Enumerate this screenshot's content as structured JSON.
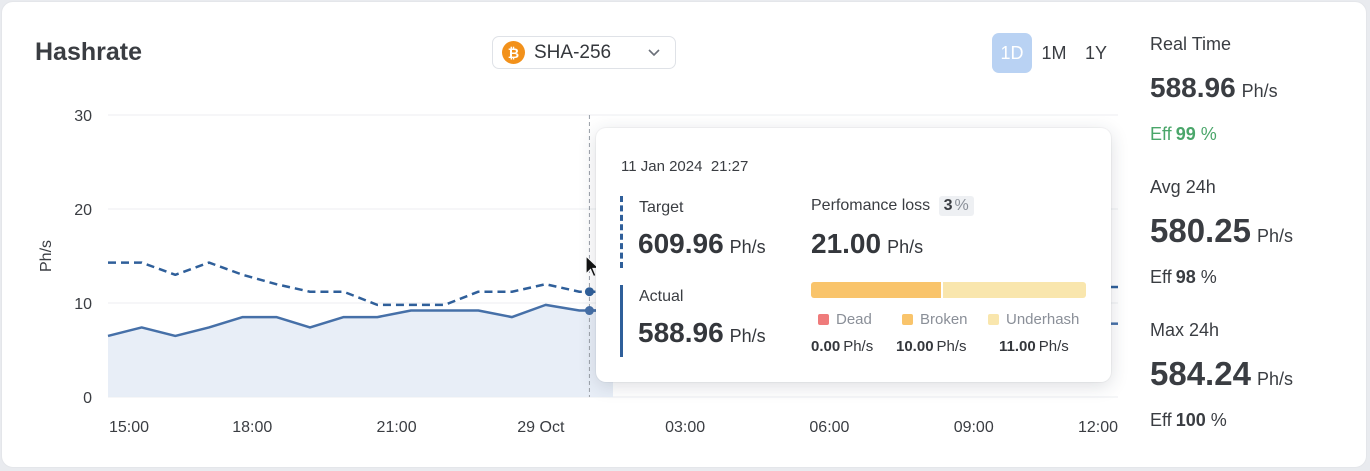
{
  "title": "Hashrate",
  "algorithm": {
    "label": "SHA-256",
    "icon": "bitcoin-icon",
    "icon_color": "#f2911b"
  },
  "ranges": [
    {
      "label": "1D",
      "active": true
    },
    {
      "label": "1M",
      "active": false
    },
    {
      "label": "1Y",
      "active": false
    }
  ],
  "chart_data": {
    "type": "area",
    "ylabel": "Ph/s",
    "ylim": [
      0,
      30
    ],
    "yticks": [
      "30",
      "20",
      "10",
      "0"
    ],
    "xticks": [
      "15:00",
      "18:00",
      "21:00",
      "29 Oct",
      "03:00",
      "06:00",
      "09:00",
      "12:00"
    ],
    "grid": true,
    "series": [
      {
        "name": "Target",
        "style": "dashed",
        "color": "#2f5f9a",
        "values": [
          14.3,
          14.3,
          13.0,
          14.3,
          13.0,
          12.0,
          11.2,
          11.2,
          9.8,
          9.8,
          9.8,
          11.2,
          11.2,
          12.0,
          11.2,
          11.2,
          null,
          null,
          null,
          null,
          null,
          null,
          null,
          null,
          null,
          null,
          null,
          null,
          null,
          null,
          11.7
        ]
      },
      {
        "name": "Actual",
        "style": "solid",
        "color": "#4670a8",
        "fill": "#e6ecf6",
        "values": [
          6.5,
          7.4,
          6.5,
          7.4,
          8.5,
          8.5,
          7.4,
          8.5,
          8.5,
          9.2,
          9.2,
          9.2,
          8.5,
          9.8,
          9.2,
          9.2,
          null,
          null,
          null,
          null,
          null,
          null,
          null,
          null,
          null,
          null,
          null,
          null,
          null,
          null,
          7.8
        ]
      }
    ],
    "cursor_index": 14.3
  },
  "tooltip": {
    "date": "11 Jan 2024",
    "time": "21:27",
    "target_label": "Target",
    "target_value": "609.96",
    "target_unit": "Ph/s",
    "actual_label": "Actual",
    "actual_value": "588.96",
    "actual_unit": "Ph/s",
    "loss_label": "Perfomance loss",
    "loss_pct": "3",
    "loss_pct_unit": "%",
    "loss_value": "21.00",
    "loss_unit": "Ph/s",
    "loss_breakdown": [
      {
        "label": "Dead",
        "value": "0.00",
        "unit": "Ph/s",
        "color": "#ef7b7b",
        "share": 0.0
      },
      {
        "label": "Broken",
        "value": "10.00",
        "unit": "Ph/s",
        "color": "#f9c46b",
        "share": 0.476
      },
      {
        "label": "Underhash",
        "value": "11.00",
        "unit": "Ph/s",
        "color": "#f9e6ad",
        "share": 0.524
      }
    ]
  },
  "stats": {
    "realtime": {
      "label": "Real Time",
      "value": "588.96",
      "unit": "Ph/s",
      "eff_label": "Eff",
      "eff_value": "99",
      "eff_unit": "%"
    },
    "avg": {
      "label": "Avg 24h",
      "value": "580.25",
      "unit": "Ph/s",
      "eff_label": "Eff",
      "eff_value": "98",
      "eff_unit": "%"
    },
    "max": {
      "label": "Max 24h",
      "value": "584.24",
      "unit": "Ph/s",
      "eff_label": "Eff",
      "eff_value": "100",
      "eff_unit": "%"
    }
  },
  "colors": {
    "accent": "#2f5f9a",
    "active_range": "#b9d2f3",
    "eff_good": "#4aa66a"
  }
}
